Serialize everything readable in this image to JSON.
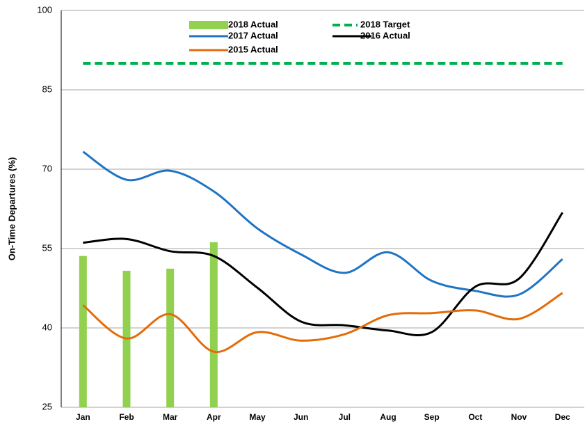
{
  "chart_data": {
    "type": "combo",
    "y_label": "On-Time Departures (%)",
    "categories": [
      "Jan",
      "Feb",
      "Mar",
      "Apr",
      "May",
      "Jun",
      "Jul",
      "Aug",
      "Sep",
      "Oct",
      "Nov",
      "Dec"
    ],
    "ylim": [
      25,
      100
    ],
    "yticks": [
      25,
      40,
      55,
      70,
      85,
      100
    ],
    "grid": true,
    "legend": "top",
    "series": [
      {
        "name": "2018 Actual",
        "type": "bar",
        "color": "#92d050",
        "values": [
          53.6,
          50.8,
          51.2,
          56.2,
          null,
          null,
          null,
          null,
          null,
          null,
          null,
          null
        ]
      },
      {
        "name": "2018 Target",
        "type": "line",
        "dashed": true,
        "color": "#00b050",
        "values": [
          90,
          90,
          90,
          90,
          90,
          90,
          90,
          90,
          90,
          90,
          90,
          90
        ]
      },
      {
        "name": "2017 Actual",
        "type": "line",
        "color": "#1f74c4",
        "values": [
          73.3,
          68.0,
          69.7,
          65.8,
          58.8,
          53.9,
          50.4,
          54.3,
          48.9,
          47.0,
          46.3,
          53.0
        ]
      },
      {
        "name": "2016 Actual",
        "type": "line",
        "color": "#000000",
        "values": [
          56.1,
          56.8,
          54.5,
          53.6,
          47.6,
          41.2,
          40.5,
          39.5,
          39.2,
          47.8,
          49.3,
          61.8
        ]
      },
      {
        "name": "2015 Actual",
        "type": "line",
        "color": "#e36c0a",
        "values": [
          44.3,
          38.0,
          42.6,
          35.5,
          39.2,
          37.6,
          38.8,
          42.4,
          42.8,
          43.3,
          41.7,
          46.6
        ]
      }
    ]
  }
}
